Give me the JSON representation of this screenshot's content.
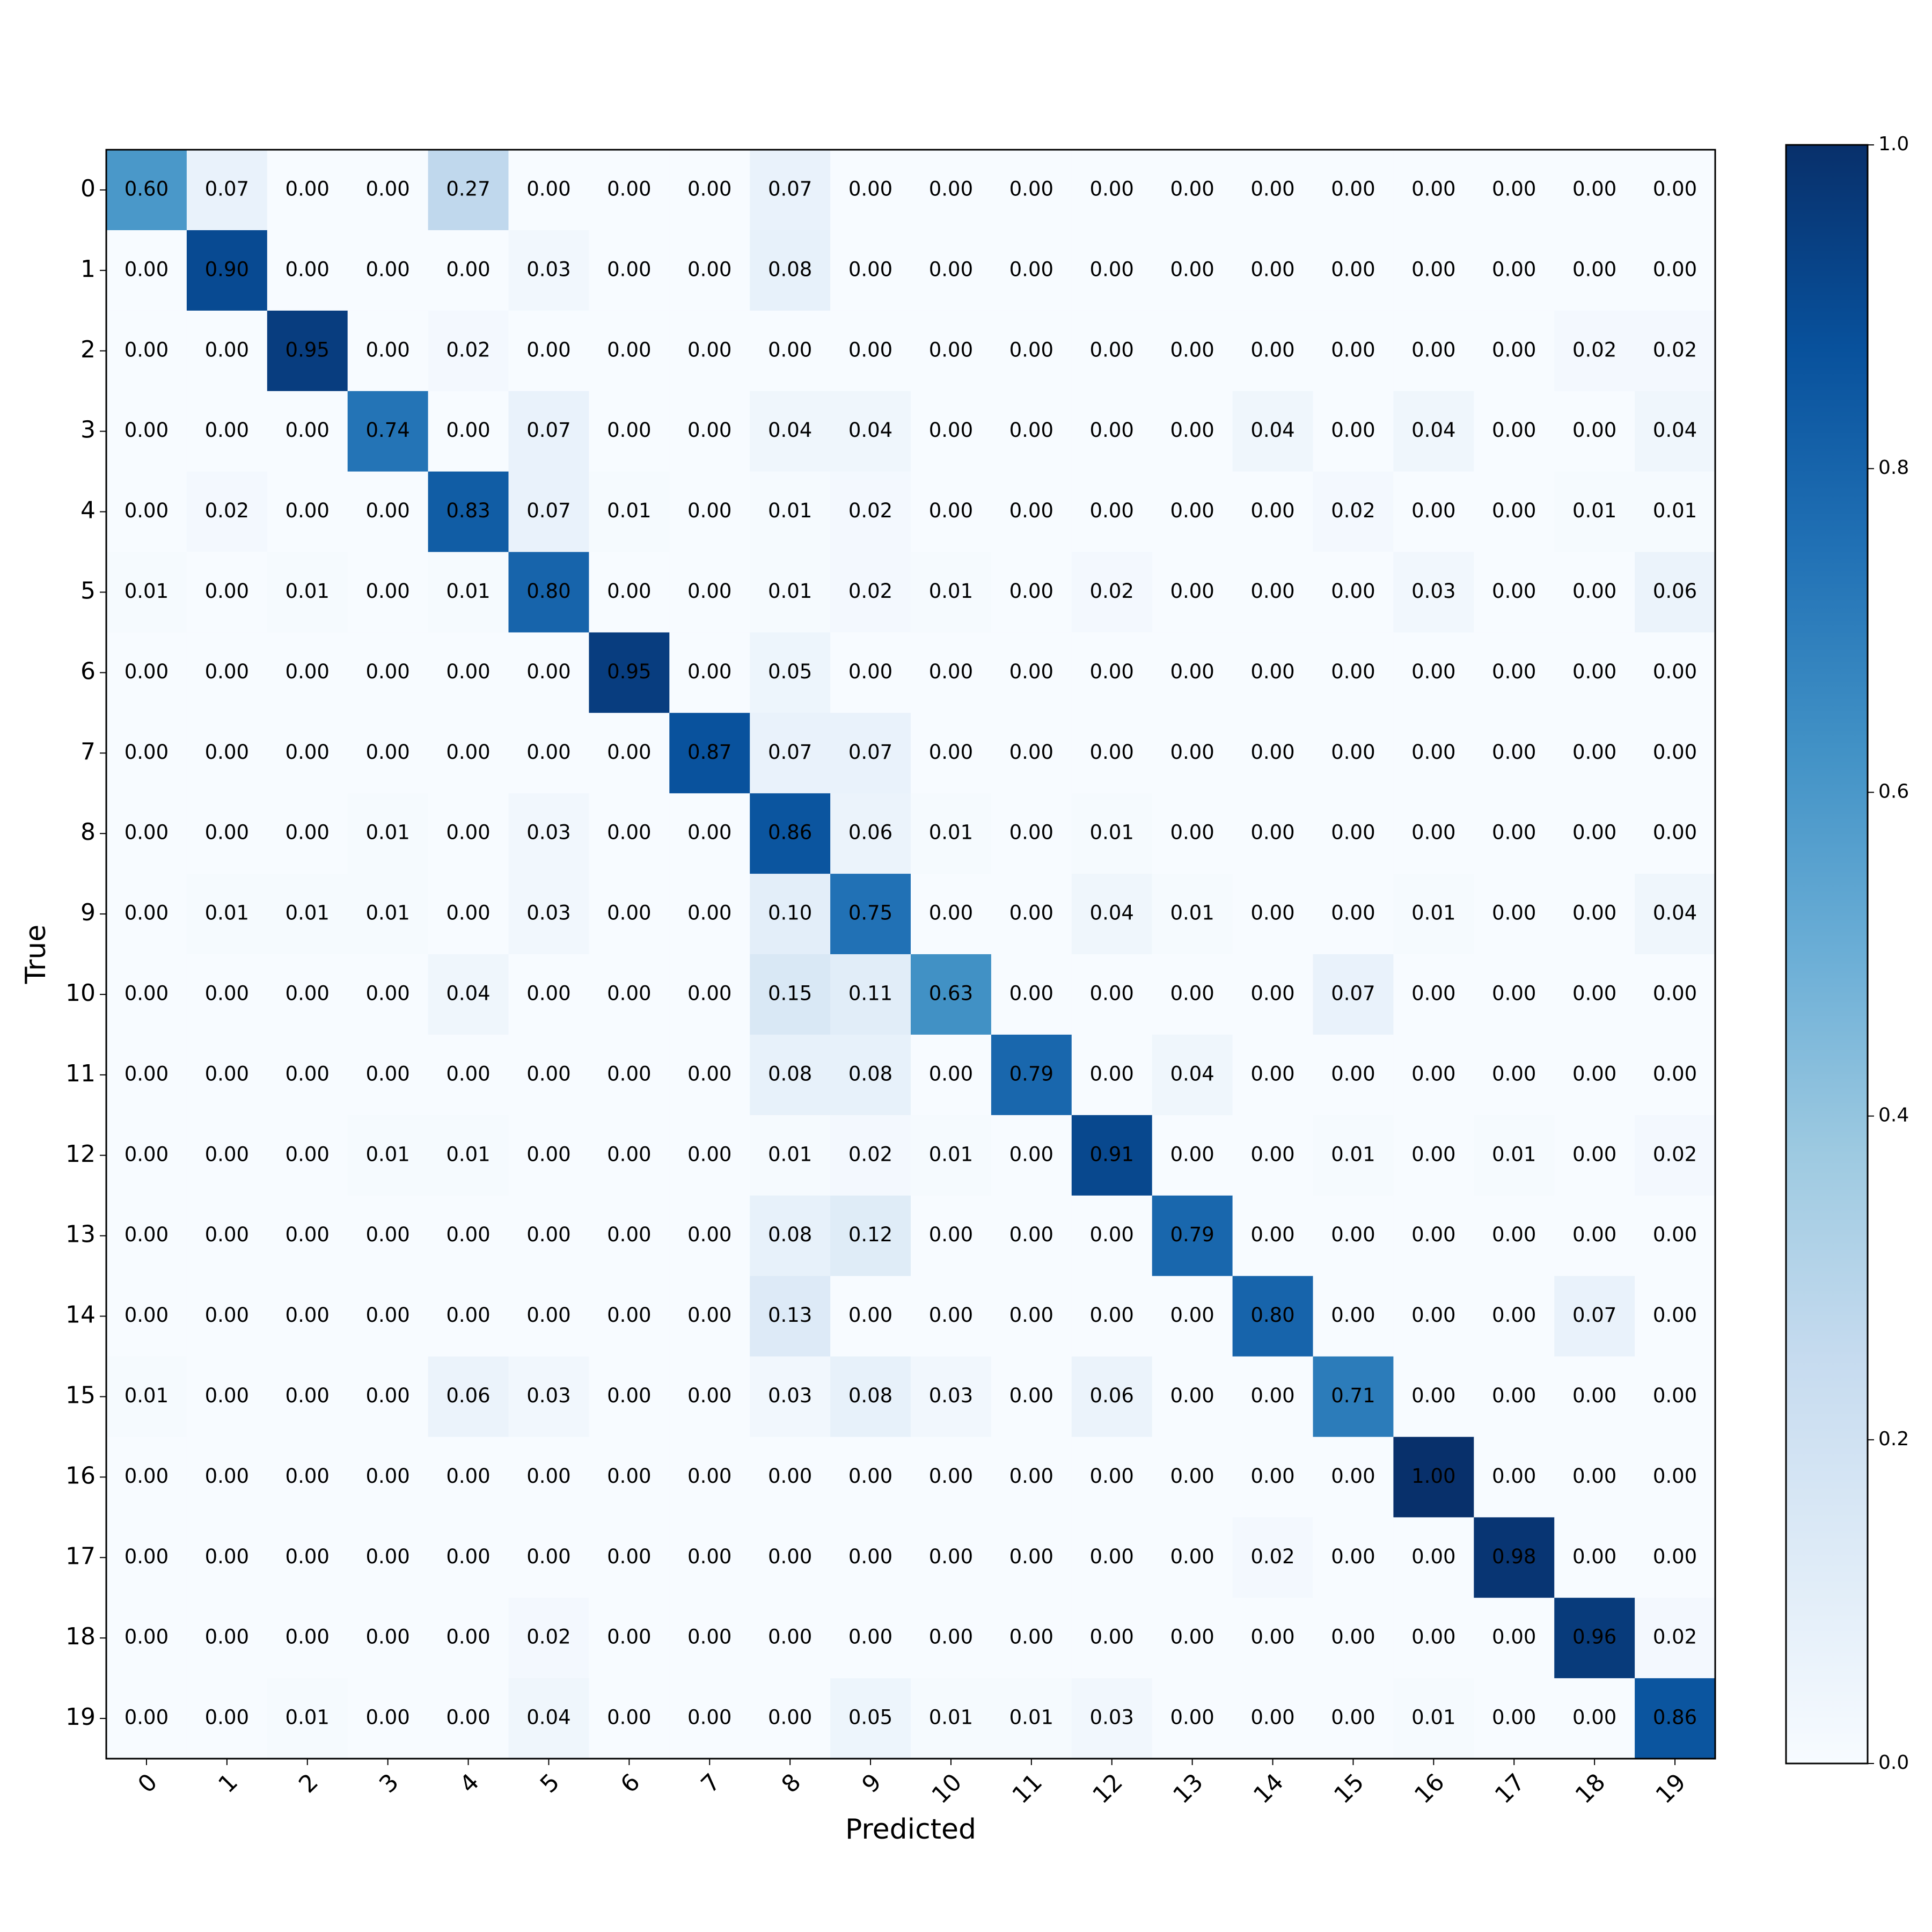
{
  "chart_data": {
    "type": "heatmap",
    "x_label": "Predicted",
    "y_label": "True",
    "x_categories": [
      "0",
      "1",
      "2",
      "3",
      "4",
      "5",
      "6",
      "7",
      "8",
      "9",
      "10",
      "11",
      "12",
      "13",
      "14",
      "15",
      "16",
      "17",
      "18",
      "19"
    ],
    "y_categories": [
      "0",
      "1",
      "2",
      "3",
      "4",
      "5",
      "6",
      "7",
      "8",
      "9",
      "10",
      "11",
      "12",
      "13",
      "14",
      "15",
      "16",
      "17",
      "18",
      "19"
    ],
    "values": [
      [
        0.6,
        0.07,
        0,
        0,
        0.27,
        0,
        0,
        0,
        0.07,
        0,
        0,
        0,
        0,
        0,
        0,
        0,
        0,
        0,
        0,
        0
      ],
      [
        0,
        0.9,
        0,
        0,
        0,
        0.03,
        0,
        0,
        0.08,
        0,
        0,
        0,
        0,
        0,
        0,
        0,
        0,
        0,
        0,
        0
      ],
      [
        0,
        0,
        0.95,
        0,
        0.02,
        0,
        0,
        0,
        0,
        0,
        0,
        0,
        0,
        0,
        0,
        0,
        0,
        0,
        0.02,
        0.02
      ],
      [
        0,
        0,
        0,
        0.74,
        0,
        0.07,
        0,
        0,
        0.04,
        0.04,
        0,
        0,
        0,
        0,
        0.04,
        0,
        0.04,
        0,
        0,
        0.04
      ],
      [
        0,
        0.02,
        0,
        0,
        0.83,
        0.07,
        0.01,
        0,
        0.01,
        0.02,
        0,
        0,
        0,
        0,
        0,
        0.02,
        0,
        0,
        0.01,
        0.01
      ],
      [
        0.01,
        0,
        0.01,
        0,
        0.01,
        0.8,
        0,
        0,
        0.01,
        0.02,
        0.01,
        0,
        0.02,
        0,
        0,
        0,
        0.03,
        0,
        0,
        0.06
      ],
      [
        0,
        0,
        0,
        0,
        0,
        0,
        0.95,
        0,
        0.05,
        0,
        0,
        0,
        0,
        0,
        0,
        0,
        0,
        0,
        0,
        0
      ],
      [
        0,
        0,
        0,
        0,
        0,
        0,
        0,
        0.87,
        0.07,
        0.07,
        0,
        0,
        0,
        0,
        0,
        0,
        0,
        0,
        0,
        0
      ],
      [
        0,
        0,
        0,
        0.01,
        0,
        0.03,
        0,
        0,
        0.86,
        0.06,
        0.01,
        0,
        0.01,
        0,
        0,
        0,
        0,
        0,
        0,
        0
      ],
      [
        0,
        0.01,
        0.01,
        0.01,
        0,
        0.03,
        0,
        0,
        0.1,
        0.75,
        0,
        0,
        0.04,
        0.01,
        0,
        0,
        0.01,
        0,
        0,
        0.04
      ],
      [
        0,
        0,
        0,
        0,
        0.04,
        0,
        0,
        0,
        0.15,
        0.11,
        0.63,
        0,
        0,
        0,
        0,
        0.07,
        0,
        0,
        0,
        0
      ],
      [
        0,
        0,
        0,
        0,
        0,
        0,
        0,
        0,
        0.08,
        0.08,
        0,
        0.79,
        0,
        0.04,
        0,
        0,
        0,
        0,
        0,
        0
      ],
      [
        0,
        0,
        0,
        0.01,
        0.01,
        0,
        0,
        0,
        0.01,
        0.02,
        0.01,
        0,
        0.91,
        0,
        0,
        0.01,
        0,
        0.01,
        0,
        0.02
      ],
      [
        0,
        0,
        0,
        0,
        0,
        0,
        0,
        0,
        0.08,
        0.12,
        0,
        0,
        0,
        0.79,
        0,
        0,
        0,
        0,
        0,
        0
      ],
      [
        0,
        0,
        0,
        0,
        0,
        0,
        0,
        0,
        0.13,
        0,
        0,
        0,
        0,
        0,
        0.8,
        0,
        0,
        0,
        0.07,
        0
      ],
      [
        0.01,
        0,
        0,
        0,
        0.06,
        0.03,
        0,
        0,
        0.03,
        0.08,
        0.03,
        0,
        0.06,
        0,
        0,
        0.71,
        0,
        0,
        0,
        0
      ],
      [
        0,
        0,
        0,
        0,
        0,
        0,
        0,
        0,
        0,
        0,
        0,
        0,
        0,
        0,
        0,
        0,
        1,
        0,
        0,
        0
      ],
      [
        0,
        0,
        0,
        0,
        0,
        0,
        0,
        0,
        0,
        0,
        0,
        0,
        0,
        0,
        0.02,
        0,
        0,
        0.98,
        0,
        0
      ],
      [
        0,
        0,
        0,
        0,
        0,
        0.02,
        0,
        0,
        0,
        0,
        0,
        0,
        0,
        0,
        0,
        0,
        0,
        0,
        0.96,
        0.02
      ],
      [
        0,
        0,
        0.01,
        0,
        0,
        0.04,
        0,
        0,
        0,
        0.05,
        0.01,
        0.01,
        0.03,
        0,
        0,
        0,
        0.01,
        0,
        0,
        0.86
      ]
    ],
    "value_labels": [
      [
        "0.60",
        "0.07",
        "0.00",
        "0.00",
        "0.27",
        "0.00",
        "0.00",
        "0.00",
        "0.07",
        "0.00",
        "0.00",
        "0.00",
        "0.00",
        "0.00",
        "0.00",
        "0.00",
        "0.00",
        "0.00",
        "0.00",
        "0.00"
      ],
      [
        "0.00",
        "0.90",
        "0.00",
        "0.00",
        "0.00",
        "0.03",
        "0.00",
        "0.00",
        "0.08",
        "0.00",
        "0.00",
        "0.00",
        "0.00",
        "0.00",
        "0.00",
        "0.00",
        "0.00",
        "0.00",
        "0.00",
        "0.00"
      ],
      [
        "0.00",
        "0.00",
        "0.95",
        "0.00",
        "0.02",
        "0.00",
        "0.00",
        "0.00",
        "0.00",
        "0.00",
        "0.00",
        "0.00",
        "0.00",
        "0.00",
        "0.00",
        "0.00",
        "0.00",
        "0.00",
        "0.02",
        "0.02"
      ],
      [
        "0.00",
        "0.00",
        "0.00",
        "0.74",
        "0.00",
        "0.07",
        "0.00",
        "0.00",
        "0.04",
        "0.04",
        "0.00",
        "0.00",
        "0.00",
        "0.00",
        "0.04",
        "0.00",
        "0.04",
        "0.00",
        "0.00",
        "0.04"
      ],
      [
        "0.00",
        "0.02",
        "0.00",
        "0.00",
        "0.83",
        "0.07",
        "0.01",
        "0.00",
        "0.01",
        "0.02",
        "0.00",
        "0.00",
        "0.00",
        "0.00",
        "0.00",
        "0.02",
        "0.00",
        "0.00",
        "0.01",
        "0.01"
      ],
      [
        "0.01",
        "0.00",
        "0.01",
        "0.00",
        "0.01",
        "0.80",
        "0.00",
        "0.00",
        "0.01",
        "0.02",
        "0.01",
        "0.00",
        "0.02",
        "0.00",
        "0.00",
        "0.00",
        "0.03",
        "0.00",
        "0.00",
        "0.06"
      ],
      [
        "0.00",
        "0.00",
        "0.00",
        "0.00",
        "0.00",
        "0.00",
        "0.95",
        "0.00",
        "0.05",
        "0.00",
        "0.00",
        "0.00",
        "0.00",
        "0.00",
        "0.00",
        "0.00",
        "0.00",
        "0.00",
        "0.00",
        "0.00"
      ],
      [
        "0.00",
        "0.00",
        "0.00",
        "0.00",
        "0.00",
        "0.00",
        "0.00",
        "0.87",
        "0.07",
        "0.07",
        "0.00",
        "0.00",
        "0.00",
        "0.00",
        "0.00",
        "0.00",
        "0.00",
        "0.00",
        "0.00",
        "0.00"
      ],
      [
        "0.00",
        "0.00",
        "0.00",
        "0.01",
        "0.00",
        "0.03",
        "0.00",
        "0.00",
        "0.86",
        "0.06",
        "0.01",
        "0.00",
        "0.01",
        "0.00",
        "0.00",
        "0.00",
        "0.00",
        "0.00",
        "0.00",
        "0.00"
      ],
      [
        "0.00",
        "0.01",
        "0.01",
        "0.01",
        "0.00",
        "0.03",
        "0.00",
        "0.00",
        "0.10",
        "0.75",
        "0.00",
        "0.00",
        "0.04",
        "0.01",
        "0.00",
        "0.00",
        "0.01",
        "0.00",
        "0.00",
        "0.04"
      ],
      [
        "0.00",
        "0.00",
        "0.00",
        "0.00",
        "0.04",
        "0.00",
        "0.00",
        "0.00",
        "0.15",
        "0.11",
        "0.63",
        "0.00",
        "0.00",
        "0.00",
        "0.00",
        "0.07",
        "0.00",
        "0.00",
        "0.00",
        "0.00"
      ],
      [
        "0.00",
        "0.00",
        "0.00",
        "0.00",
        "0.00",
        "0.00",
        "0.00",
        "0.00",
        "0.08",
        "0.08",
        "0.00",
        "0.79",
        "0.00",
        "0.04",
        "0.00",
        "0.00",
        "0.00",
        "0.00",
        "0.00",
        "0.00"
      ],
      [
        "0.00",
        "0.00",
        "0.00",
        "0.01",
        "0.01",
        "0.00",
        "0.00",
        "0.00",
        "0.01",
        "0.02",
        "0.01",
        "0.00",
        "0.91",
        "0.00",
        "0.00",
        "0.01",
        "0.00",
        "0.01",
        "0.00",
        "0.02"
      ],
      [
        "0.00",
        "0.00",
        "0.00",
        "0.00",
        "0.00",
        "0.00",
        "0.00",
        "0.00",
        "0.08",
        "0.12",
        "0.00",
        "0.00",
        "0.00",
        "0.79",
        "0.00",
        "0.00",
        "0.00",
        "0.00",
        "0.00",
        "0.00"
      ],
      [
        "0.00",
        "0.00",
        "0.00",
        "0.00",
        "0.00",
        "0.00",
        "0.00",
        "0.00",
        "0.13",
        "0.00",
        "0.00",
        "0.00",
        "0.00",
        "0.00",
        "0.80",
        "0.00",
        "0.00",
        "0.00",
        "0.07",
        "0.00"
      ],
      [
        "0.01",
        "0.00",
        "0.00",
        "0.00",
        "0.06",
        "0.03",
        "0.00",
        "0.00",
        "0.03",
        "0.08",
        "0.03",
        "0.00",
        "0.06",
        "0.00",
        "0.00",
        "0.71",
        "0.00",
        "0.00",
        "0.00",
        "0.00"
      ],
      [
        "0.00",
        "0.00",
        "0.00",
        "0.00",
        "0.00",
        "0.00",
        "0.00",
        "0.00",
        "0.00",
        "0.00",
        "0.00",
        "0.00",
        "0.00",
        "0.00",
        "0.00",
        "0.00",
        "1.00",
        "0.00",
        "0.00",
        "0.00"
      ],
      [
        "0.00",
        "0.00",
        "0.00",
        "0.00",
        "0.00",
        "0.00",
        "0.00",
        "0.00",
        "0.00",
        "0.00",
        "0.00",
        "0.00",
        "0.00",
        "0.00",
        "0.02",
        "0.00",
        "0.00",
        "0.98",
        "0.00",
        "0.00"
      ],
      [
        "0.00",
        "0.00",
        "0.00",
        "0.00",
        "0.00",
        "0.02",
        "0.00",
        "0.00",
        "0.00",
        "0.00",
        "0.00",
        "0.00",
        "0.00",
        "0.00",
        "0.00",
        "0.00",
        "0.00",
        "0.00",
        "0.96",
        "0.02"
      ],
      [
        "0.00",
        "0.00",
        "0.01",
        "0.00",
        "0.00",
        "0.04",
        "0.00",
        "0.00",
        "0.00",
        "0.05",
        "0.01",
        "0.01",
        "0.03",
        "0.00",
        "0.00",
        "0.00",
        "0.01",
        "0.00",
        "0.00",
        "0.86"
      ]
    ],
    "clim": [
      0,
      1
    ],
    "cticks": [
      {
        "value": 0,
        "label": "0.0"
      },
      0.2,
      0.4,
      0.6,
      0.8,
      {
        "value": 1,
        "label": "1.0"
      }
    ],
    "colormap": [
      "#f7fbff",
      "#deebf7",
      "#c6dbef",
      "#9ecae1",
      "#6baed6",
      "#4292c6",
      "#2171b5",
      "#08519c",
      "#08306b"
    ]
  }
}
